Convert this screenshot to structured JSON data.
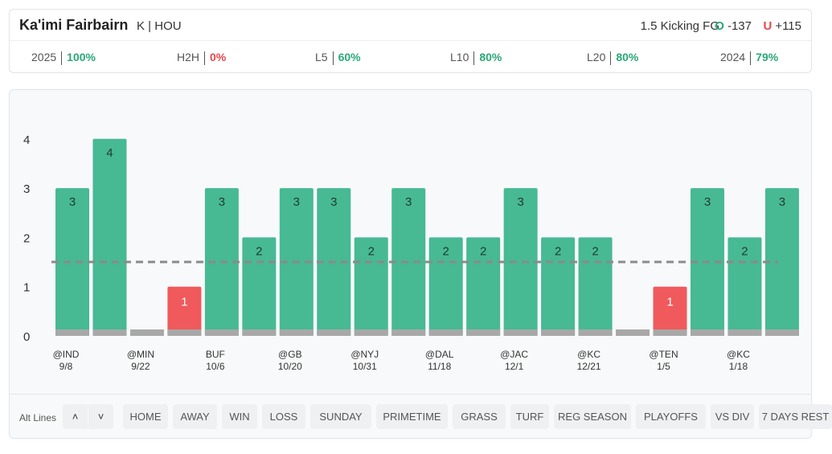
{
  "header": {
    "player_name": "Ka'imi Fairbairn",
    "player_meta": "K | HOU",
    "prop_line": "1.5 Kicking FG",
    "over": {
      "letter": "O",
      "odds": "-137"
    },
    "under": {
      "letter": "U",
      "odds": "+115"
    }
  },
  "stats": [
    {
      "label": "2025",
      "value": "100%",
      "status": "good"
    },
    {
      "label": "H2H",
      "value": "0%",
      "status": "bad"
    },
    {
      "label": "L5",
      "value": "60%",
      "status": "good"
    },
    {
      "label": "L10",
      "value": "80%",
      "status": "good"
    },
    {
      "label": "L20",
      "value": "80%",
      "status": "good"
    },
    {
      "label": "2024",
      "value": "79%",
      "status": "good"
    }
  ],
  "colors": {
    "over": "#47b993",
    "under": "#f05a5c",
    "push_base": "#a8a8a8",
    "line": "#8a8a8a",
    "good_text": "#2aa878",
    "bad_text": "#e8464a"
  },
  "chart_data": {
    "type": "bar",
    "line_value": 1.5,
    "ylim": [
      0,
      4
    ],
    "yticks": [
      "0",
      "1",
      "2",
      "3",
      "4"
    ],
    "values": [
      3,
      4,
      0,
      1,
      3,
      2,
      3,
      3,
      2,
      3,
      2,
      2,
      3,
      2,
      2,
      0,
      1,
      3,
      2,
      3
    ],
    "bar_labels": [
      "3",
      "4",
      "",
      "1",
      "3",
      "2",
      "3",
      "3",
      "2",
      "3",
      "2",
      "2",
      "3",
      "2",
      "2",
      "",
      "1",
      "3",
      "2",
      "3"
    ],
    "x_labels": [
      {
        "opponent": "@IND",
        "date": "9/8"
      },
      {
        "opponent": "",
        "date": ""
      },
      {
        "opponent": "@MIN",
        "date": "9/22"
      },
      {
        "opponent": "",
        "date": ""
      },
      {
        "opponent": "BUF",
        "date": "10/6"
      },
      {
        "opponent": "",
        "date": ""
      },
      {
        "opponent": "@GB",
        "date": "10/20"
      },
      {
        "opponent": "",
        "date": ""
      },
      {
        "opponent": "@NYJ",
        "date": "10/31"
      },
      {
        "opponent": "",
        "date": ""
      },
      {
        "opponent": "@DAL",
        "date": "11/18"
      },
      {
        "opponent": "",
        "date": ""
      },
      {
        "opponent": "@JAC",
        "date": "12/1"
      },
      {
        "opponent": "",
        "date": ""
      },
      {
        "opponent": "@KC",
        "date": "12/21"
      },
      {
        "opponent": "",
        "date": ""
      },
      {
        "opponent": "@TEN",
        "date": "1/5"
      },
      {
        "opponent": "",
        "date": ""
      },
      {
        "opponent": "@KC",
        "date": "1/18"
      },
      {
        "opponent": "",
        "date": ""
      }
    ]
  },
  "filters": {
    "alt_lines_label": "Alt Lines",
    "up_icon": "˄",
    "down_icon": "˅",
    "buttons": [
      "HOME",
      "AWAY",
      "WIN",
      "LOSS",
      "SUNDAY",
      "PRIMETIME",
      "GRASS",
      "TURF",
      "REG SEASON",
      "PLAYOFFS",
      "VS DIV",
      "7 DAYS REST"
    ]
  }
}
